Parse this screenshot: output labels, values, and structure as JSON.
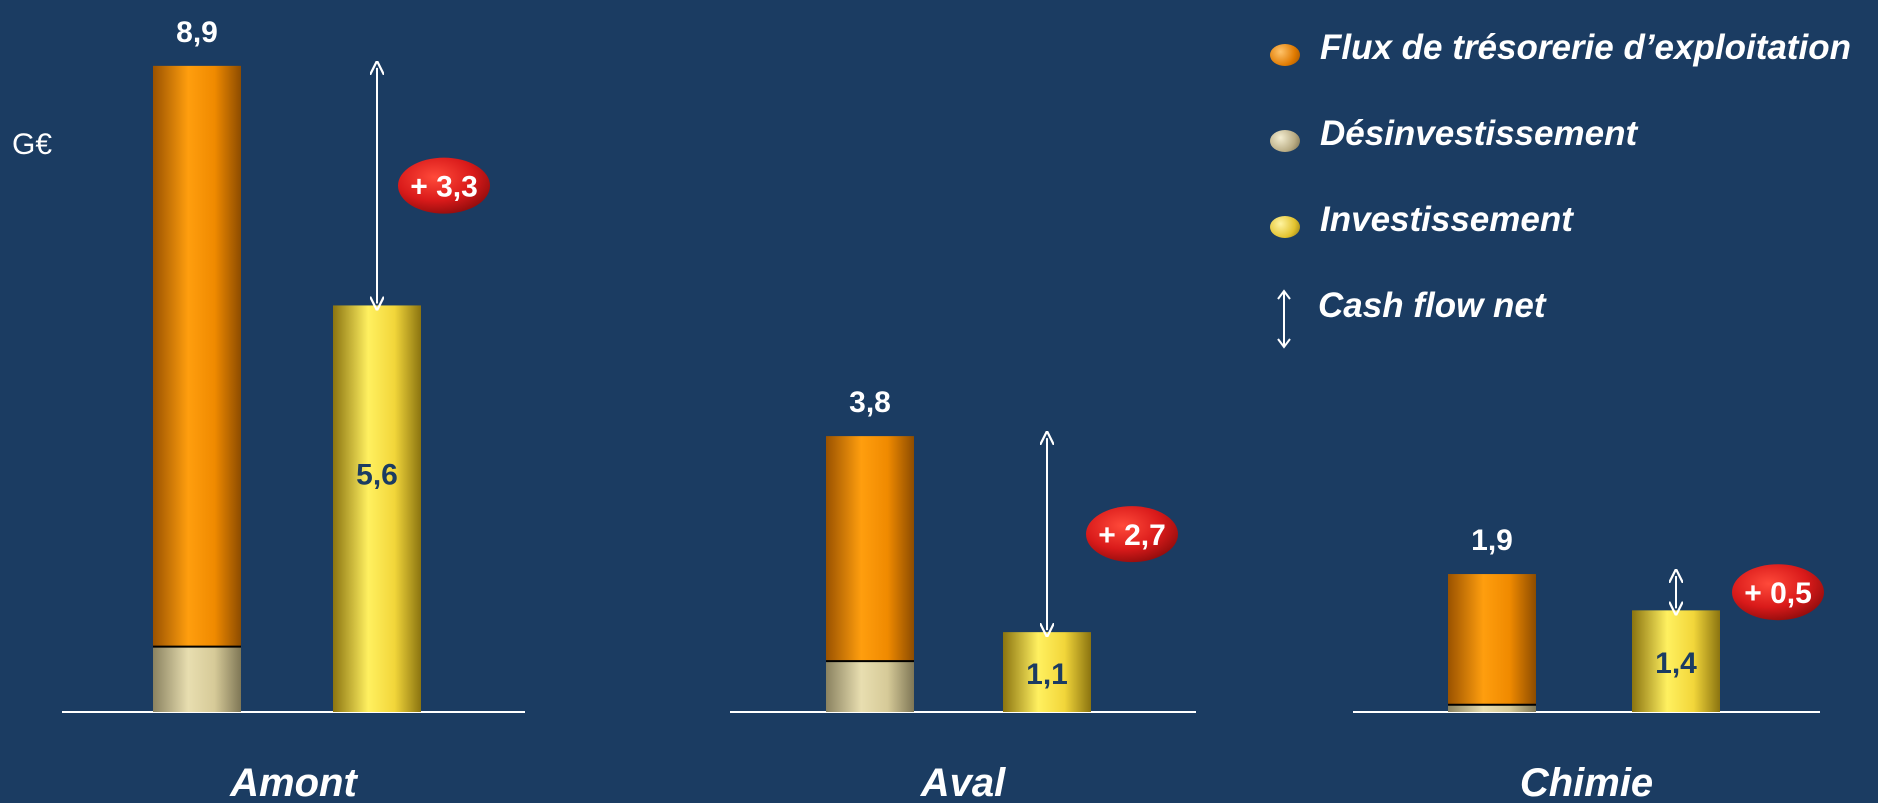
{
  "unit": "G€",
  "colors": {
    "background": "#1b3c62",
    "flux": "#f59a10",
    "desinvestissement": "#d8cd9c",
    "investissement": "#f2d63a",
    "badge": "#d91a1a"
  },
  "legend": [
    {
      "key": "flux",
      "label": "Flux de trésorerie d’exploitation"
    },
    {
      "key": "desinvestissement",
      "label": "Désinvestissement"
    },
    {
      "key": "investissement",
      "label": "Investissement"
    },
    {
      "key": "cash_flow_net",
      "label": "Cash flow net"
    }
  ],
  "chart_data": {
    "type": "bar",
    "unit": "G€",
    "ylim": [
      0,
      10
    ],
    "grid": false,
    "legend_position": "top-right",
    "groups": [
      {
        "category": "Amont",
        "source_total": 8.9,
        "source_total_label": "8,9",
        "desinvestissement": 0.9,
        "flux_exploitation": 8.0,
        "investissement": 5.6,
        "investissement_label": "5,6",
        "cash_flow_net": 3.3,
        "cash_flow_net_label": "+ 3,3"
      },
      {
        "category": "Aval",
        "source_total": 3.8,
        "source_total_label": "3,8",
        "desinvestissement": 0.7,
        "flux_exploitation": 3.1,
        "investissement": 1.1,
        "investissement_label": "1,1",
        "cash_flow_net": 2.7,
        "cash_flow_net_label": "+ 2,7"
      },
      {
        "category": "Chimie",
        "source_total": 1.9,
        "source_total_label": "1,9",
        "desinvestissement": 0.1,
        "flux_exploitation": 1.8,
        "investissement": 1.4,
        "investissement_label": "1,4",
        "cash_flow_net": 0.5,
        "cash_flow_net_label": "+ 0,5"
      }
    ]
  }
}
